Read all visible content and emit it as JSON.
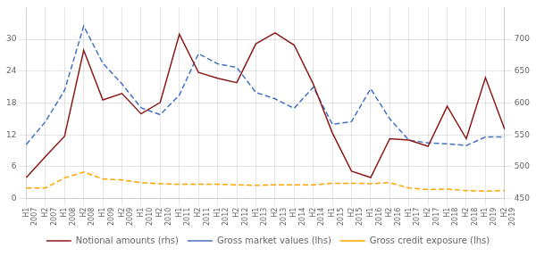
{
  "chart_data": {
    "type": "line",
    "categories": [
      "H1\n2007",
      "H2\n2007",
      "H1\n2008",
      "H2\n2008",
      "H1\n2009",
      "H2\n2009",
      "H1\n2010",
      "H2\n2010",
      "H1\n2011",
      "H2\n2011",
      "H1\n2012",
      "H2\n2012",
      "H1\n2013",
      "H2\n2013",
      "H1\n2014",
      "H2\n2014",
      "H1\n2015",
      "H2\n2015",
      "H1\n2016",
      "H2\n2016",
      "H1\n2017",
      "H2\n2017",
      "H1\n2018",
      "H2\n2018",
      "H1\n2019",
      "H2\n2019"
    ],
    "series": [
      {
        "name": "Notional amounts (rhs)",
        "color": "#8B1A1A",
        "line_style": "solid",
        "axis": "y2",
        "values": [
          483,
          516,
          548,
          683,
          605,
          615,
          583,
          601,
          708,
          648,
          639,
          632,
          693,
          710,
          691,
          630,
          553,
          493,
          483,
          544,
          542,
          532,
          595,
          544,
          640,
          559
        ]
      },
      {
        "name": "Gross market values (lhs)",
        "color": "#4472C4",
        "line_style": "dashed",
        "values": [
          10.2,
          14.5,
          20.4,
          32.5,
          25.5,
          21.6,
          17.1,
          15.8,
          19.5,
          27.3,
          25.4,
          24.7,
          20.0,
          18.8,
          17.0,
          21.0,
          14.0,
          14.5,
          20.7,
          15.0,
          11.0,
          10.5,
          10.3,
          10.0,
          11.6,
          11.6
        ]
      },
      {
        "name": "Gross credit exposure (lhs)",
        "color": "#FFA500",
        "line_style": "dashed",
        "values": [
          2.0,
          2.0,
          3.9,
          5.0,
          3.7,
          3.5,
          3.0,
          2.8,
          2.7,
          2.7,
          2.7,
          2.6,
          2.5,
          2.6,
          2.6,
          2.6,
          2.9,
          2.9,
          2.8,
          3.0,
          2.0,
          1.7,
          1.8,
          1.5,
          1.4,
          1.5
        ]
      }
    ],
    "ylim": [
      0,
      36
    ],
    "yticks": [
      0,
      6,
      12,
      18,
      24,
      30
    ],
    "y2lim": [
      450,
      750
    ],
    "y2ticks": [
      450,
      500,
      550,
      600,
      650,
      700
    ],
    "grid": true,
    "legend": "bottom"
  }
}
